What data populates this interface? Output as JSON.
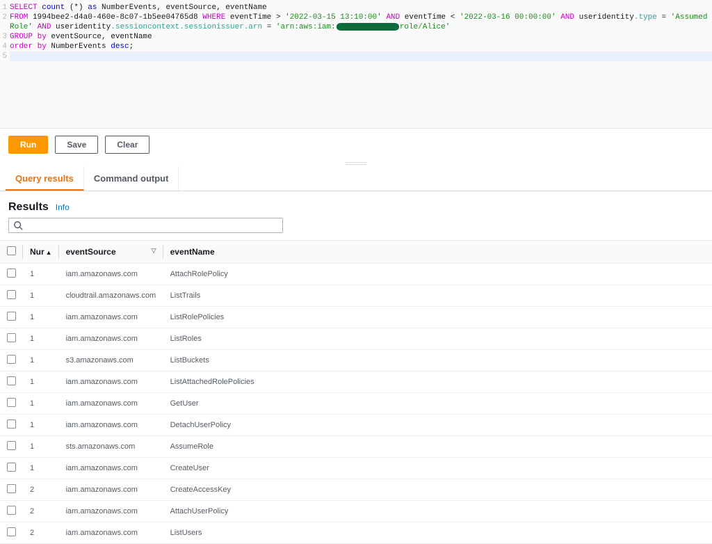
{
  "editor": {
    "lines": [
      {
        "n": 1,
        "segments": [
          {
            "t": "SELECT",
            "c": "kw"
          },
          {
            "t": " "
          },
          {
            "t": "count",
            "c": "kw2"
          },
          {
            "t": " (*) "
          },
          {
            "t": "as",
            "c": "kw2"
          },
          {
            "t": " NumberEvents, eventSource, eventName"
          }
        ]
      },
      {
        "n": 2,
        "wrap": true,
        "segments": [
          {
            "t": "FROM",
            "c": "kw"
          },
          {
            "t": " 1994bee2-d4a0-460e-8c07-1b5ee04765d8 "
          },
          {
            "t": "WHERE",
            "c": "kw"
          },
          {
            "t": " eventTime > "
          },
          {
            "t": "'2022-03-15 13:10:00'",
            "c": "str"
          },
          {
            "t": " "
          },
          {
            "t": "AND",
            "c": "kw"
          },
          {
            "t": " eventTime < "
          },
          {
            "t": "'2022-03-16 00:00:00'",
            "c": "str"
          },
          {
            "t": " "
          },
          {
            "t": "AND",
            "c": "kw"
          },
          {
            "t": " useridentity"
          },
          {
            "t": ".type",
            "c": "prop"
          },
          {
            "t": " = "
          },
          {
            "t": "'AssumedRole'",
            "c": "str"
          },
          {
            "t": " "
          },
          {
            "t": "AND",
            "c": "kw"
          },
          {
            "t": " useridentity"
          },
          {
            "t": ".sessioncontext.sessionissuer.arn",
            "c": "prop"
          },
          {
            "t": " = "
          },
          {
            "t": "'arn:aws:iam:",
            "c": "str"
          },
          {
            "t": "",
            "redact": true
          },
          {
            "t": "role/Alice'",
            "c": "str"
          }
        ]
      },
      {
        "n": 3,
        "segments": [
          {
            "t": "GROUP by",
            "c": "kw"
          },
          {
            "t": " eventSource, eventName"
          }
        ]
      },
      {
        "n": 4,
        "segments": [
          {
            "t": "order by",
            "c": "kw"
          },
          {
            "t": " NumberEvents "
          },
          {
            "t": "desc",
            "c": "kw2"
          },
          {
            "t": ";"
          }
        ]
      },
      {
        "n": 5,
        "cursor": true,
        "segments": [
          {
            "t": ""
          }
        ]
      }
    ]
  },
  "actions": {
    "run": "Run",
    "save": "Save",
    "clear": "Clear"
  },
  "tabs": {
    "query_results": "Query results",
    "command_output": "Command output"
  },
  "results_header": {
    "title": "Results",
    "info": "Info"
  },
  "search": {
    "placeholder": ""
  },
  "columns": {
    "num": "Nur",
    "source": "eventSource",
    "name": "eventName"
  },
  "rows": [
    {
      "n": "1",
      "src": "iam.amazonaws.com",
      "name": "AttachRolePolicy"
    },
    {
      "n": "1",
      "src": "cloudtrail.amazonaws.com",
      "name": "ListTrails"
    },
    {
      "n": "1",
      "src": "iam.amazonaws.com",
      "name": "ListRolePolicies"
    },
    {
      "n": "1",
      "src": "iam.amazonaws.com",
      "name": "ListRoles"
    },
    {
      "n": "1",
      "src": "s3.amazonaws.com",
      "name": "ListBuckets"
    },
    {
      "n": "1",
      "src": "iam.amazonaws.com",
      "name": "ListAttachedRolePolicies"
    },
    {
      "n": "1",
      "src": "iam.amazonaws.com",
      "name": "GetUser"
    },
    {
      "n": "1",
      "src": "iam.amazonaws.com",
      "name": "DetachUserPolicy"
    },
    {
      "n": "1",
      "src": "sts.amazonaws.com",
      "name": "AssumeRole"
    },
    {
      "n": "1",
      "src": "iam.amazonaws.com",
      "name": "CreateUser"
    },
    {
      "n": "2",
      "src": "iam.amazonaws.com",
      "name": "CreateAccessKey"
    },
    {
      "n": "2",
      "src": "iam.amazonaws.com",
      "name": "AttachUserPolicy"
    },
    {
      "n": "2",
      "src": "iam.amazonaws.com",
      "name": "ListUsers"
    }
  ],
  "colors": {
    "primary_button": "#ff9900",
    "active_tab": "#ec7211",
    "link": "#0073bb",
    "border": "#d5dbdb",
    "sql_keyword": "#c800c8",
    "sql_keyword2": "#0000d0",
    "sql_string": "#1a8a1a",
    "sql_prop": "#2aa198",
    "redaction": "#0e6b3c"
  }
}
